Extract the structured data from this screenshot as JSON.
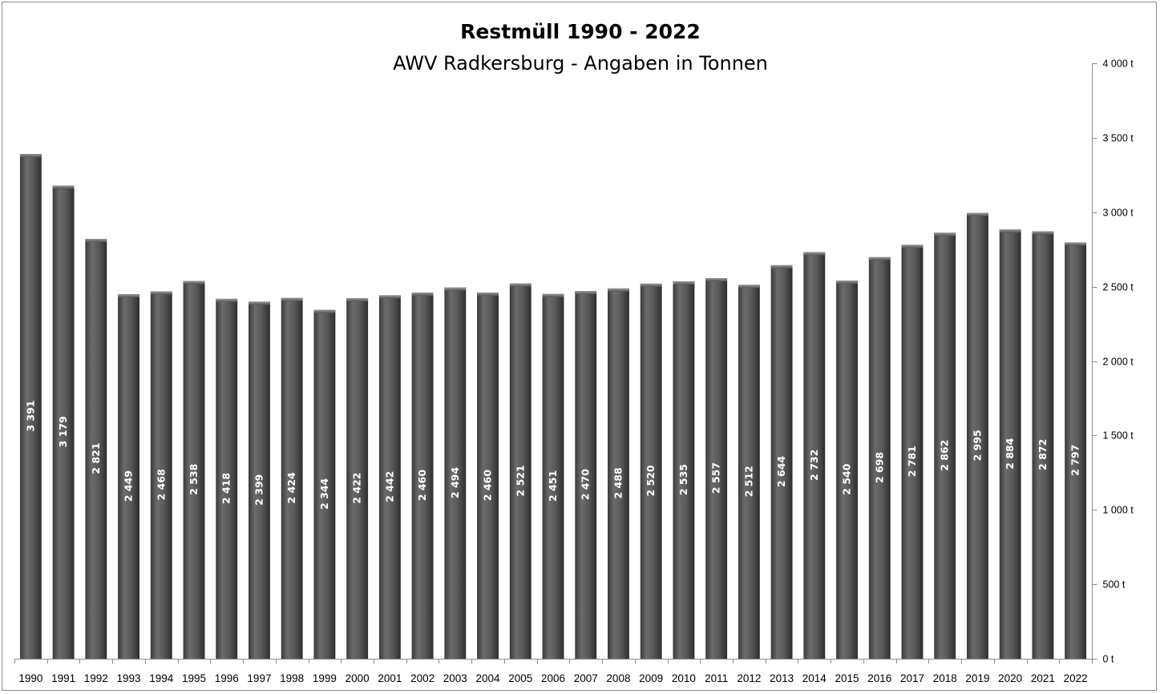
{
  "chart_data": {
    "type": "bar",
    "title": "Restmüll 1990 - 2022",
    "subtitle": "AWV Radkersburg - Angaben in Tonnen",
    "categories": [
      "1990",
      "1991",
      "1992",
      "1993",
      "1994",
      "1995",
      "1996",
      "1997",
      "1998",
      "1999",
      "2000",
      "2001",
      "2002",
      "2003",
      "2004",
      "2005",
      "2006",
      "2007",
      "2008",
      "2009",
      "2010",
      "2011",
      "2012",
      "2013",
      "2014",
      "2015",
      "2016",
      "2017",
      "2018",
      "2019",
      "2020",
      "2021",
      "2022"
    ],
    "values": [
      3391,
      3179,
      2821,
      2449,
      2468,
      2538,
      2418,
      2399,
      2424,
      2344,
      2422,
      2442,
      2460,
      2494,
      2460,
      2521,
      2451,
      2470,
      2488,
      2520,
      2535,
      2557,
      2512,
      2644,
      2732,
      2540,
      2698,
      2781,
      2862,
      2995,
      2884,
      2872,
      2797
    ],
    "value_labels": [
      "3 391",
      "3 179",
      "2 821",
      "2 449",
      "2 468",
      "2 538",
      "2 418",
      "2 399",
      "2 424",
      "2 344",
      "2 422",
      "2 442",
      "2 460",
      "2 494",
      "2 460",
      "2 521",
      "2 451",
      "2 470",
      "2 488",
      "2 520",
      "2 535",
      "2 557",
      "2 512",
      "2 644",
      "2 732",
      "2 540",
      "2 698",
      "2 781",
      "2 862",
      "2 995",
      "2 884",
      "2 872",
      "2 797"
    ],
    "ylim": [
      0,
      4000
    ],
    "y_ticks": [
      0,
      500,
      1000,
      1500,
      2000,
      2500,
      3000,
      3500,
      4000
    ],
    "y_tick_labels": [
      "0 t",
      "500 t",
      "1 000 t",
      "1 500 t",
      "2 000 t",
      "2 500 t",
      "3 000 t",
      "3 500 t",
      "4 000 t"
    ],
    "y_axis_side": "right",
    "grid": false,
    "legend": "none",
    "bar_color": "#595959",
    "label_color": "#ffffff"
  }
}
